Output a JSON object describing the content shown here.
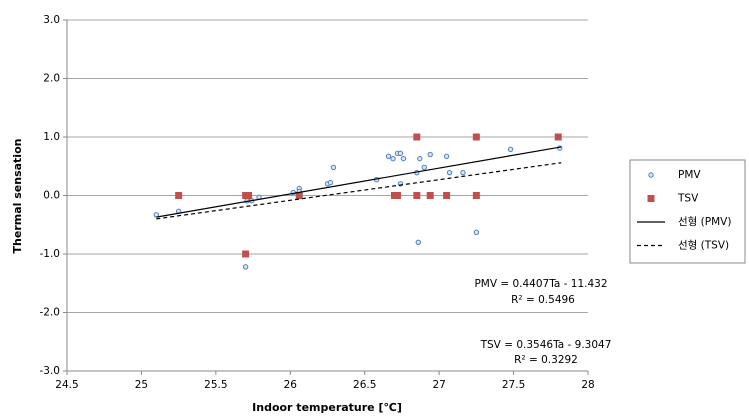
{
  "chart_data": {
    "type": "scatter",
    "x_label": "Indoor temperature [℃]",
    "y_label": "Thermal sensation",
    "xlim": [
      24.5,
      28
    ],
    "xticks": [
      24.5,
      25,
      25.5,
      26,
      26.5,
      27,
      27.5,
      28
    ],
    "ylim": [
      -3,
      3
    ],
    "yticks": [
      {
        "value": -3,
        "label": "-3.0"
      },
      {
        "value": -2,
        "label": "-2.0"
      },
      {
        "value": -1,
        "label": "-1.0"
      },
      {
        "value": 0,
        "label": "0.0"
      },
      {
        "value": 1,
        "label": "1.0"
      },
      {
        "value": 2,
        "label": "2.0"
      },
      {
        "value": 3,
        "label": "3.0"
      }
    ],
    "grid": true,
    "legend": "right",
    "series": [
      {
        "name": "PMV",
        "color": "#4f81bd",
        "marker": "circle",
        "x": [
          25.1,
          25.25,
          25.71,
          25.74,
          25.7,
          25.79,
          26.02,
          26.06,
          26.06,
          26.25,
          26.27,
          26.29,
          26.58,
          26.66,
          26.69,
          26.72,
          26.74,
          26.74,
          26.76,
          26.85,
          26.87,
          26.86,
          26.9,
          26.94,
          27.05,
          27.07,
          27.16,
          27.25,
          27.48,
          27.81
        ],
        "values": [
          -0.33,
          -0.27,
          -0.09,
          -0.09,
          -1.22,
          -0.03,
          0.05,
          0.12,
          0.07,
          0.2,
          0.22,
          0.48,
          0.27,
          0.67,
          0.63,
          0.72,
          0.72,
          0.2,
          0.63,
          0.39,
          0.63,
          -0.8,
          0.48,
          0.7,
          0.67,
          0.39,
          0.39,
          -0.63,
          0.79,
          0.81
        ]
      },
      {
        "name": "TSV",
        "color": "#c0504d",
        "marker": "square",
        "x": [
          25.25,
          25.7,
          25.72,
          25.7,
          26.06,
          26.7,
          26.72,
          26.85,
          26.85,
          26.94,
          27.05,
          27.25,
          27.25,
          27.8
        ],
        "values": [
          0,
          0,
          0,
          -1,
          0,
          0,
          0,
          1,
          0,
          0,
          0,
          1,
          0,
          1
        ]
      },
      {
        "name": "선형 (PMV)",
        "color": "#000000",
        "marker": "line",
        "dash": false,
        "x": [
          25.1,
          27.82
        ],
        "values": [
          -0.37,
          0.83
        ]
      },
      {
        "name": "선형 (TSV)",
        "color": "#000000",
        "marker": "line",
        "dash": true,
        "x": [
          25.1,
          27.82
        ],
        "values": [
          -0.4,
          0.56
        ]
      }
    ],
    "annotations": [
      "PMV = 0.4407Ta - 11.432",
      "R² = 0.5496",
      "TSV = 0.3546Ta - 9.3047",
      "R² = 0.3292"
    ]
  }
}
